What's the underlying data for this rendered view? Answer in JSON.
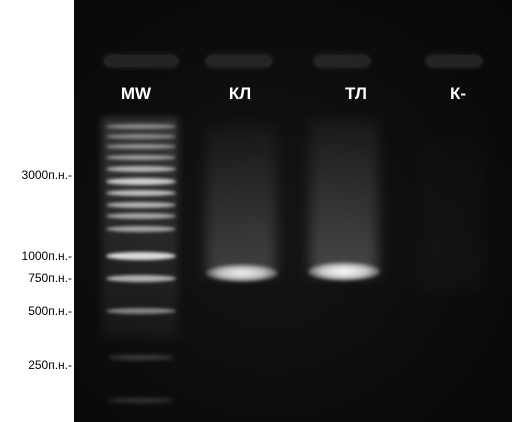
{
  "lanes": [
    {
      "label": "MW"
    },
    {
      "label": "КЛ"
    },
    {
      "label": "ТЛ"
    },
    {
      "label": "К-"
    }
  ],
  "size_markers": [
    {
      "label": "3000п.н.-"
    },
    {
      "label": "1000п.н.-"
    },
    {
      "label": "750п.н.-"
    },
    {
      "label": "500п.н.-"
    },
    {
      "label": "250п.н.-"
    }
  ]
}
